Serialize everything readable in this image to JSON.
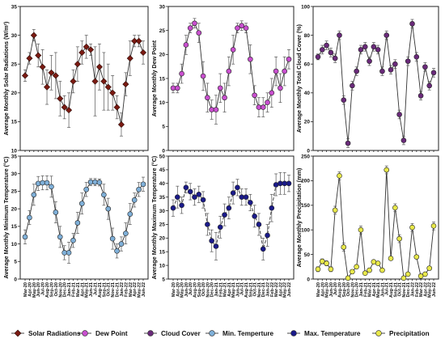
{
  "x_labels": [
    "Mar-20",
    "Apr-20",
    "May-20",
    "Jun-20",
    "Jul-20",
    "Aug-20",
    "Sep-20",
    "Oct-20",
    "Nov-20",
    "Dec-20",
    "Jan-21",
    "Feb-21",
    "Mar-21",
    "Apr-21",
    "May-21",
    "Jun-21",
    "Jul-21",
    "Aug-21",
    "Sep-21",
    "Oct-21",
    "Nov-21",
    "Dec-21",
    "Jan-22",
    "Feb-22",
    "Mar-22",
    "Apr-22",
    "May-22",
    "Jun-22"
  ],
  "legend": [
    {
      "label": "Solar Radiations",
      "color": "#7b1a12",
      "marker": "diamond"
    },
    {
      "label": "Dew Point",
      "color": "#c94fcf",
      "marker": "circle"
    },
    {
      "label": "Cloud Cover",
      "color": "#6a2a7a",
      "marker": "circle"
    },
    {
      "label": "Min. Temperture",
      "color": "#7fb0d9",
      "marker": "circle"
    },
    {
      "label": "Max. Temperature",
      "color": "#1a1a8a",
      "marker": "circle"
    },
    {
      "label": "Precipitation",
      "color": "#e8e84a",
      "marker": "circle"
    }
  ],
  "chart_data": [
    {
      "type": "line",
      "series_name": "Solar Radiations",
      "ylabel": "Average Monthly Solar Radiations (W/m²)",
      "ylim": [
        10,
        35
      ],
      "yticks": [
        10,
        15,
        20,
        25,
        30,
        35
      ],
      "color": "#7b1a12",
      "marker": "diamond",
      "dashed": false,
      "show_xlabels": false,
      "values": [
        23,
        26,
        30,
        26.5,
        24.5,
        21,
        23.5,
        23,
        19,
        17.5,
        17,
        22,
        25,
        27,
        28,
        27.5,
        22,
        24.5,
        22,
        21,
        20,
        17.5,
        14.5,
        21.5,
        26,
        29,
        29,
        27
      ],
      "errors": [
        1,
        1,
        1,
        2,
        3,
        3,
        3,
        4,
        3,
        2,
        3,
        2,
        3,
        2,
        2,
        1,
        6,
        4,
        5,
        4,
        3,
        2,
        2,
        2,
        3,
        1,
        1,
        2
      ]
    },
    {
      "type": "line",
      "series_name": "Dew Point",
      "ylabel": "Average Monthly Dew Point",
      "ylim": [
        0,
        30
      ],
      "yticks": [
        0,
        5,
        10,
        15,
        20,
        25,
        30
      ],
      "color": "#c94fcf",
      "marker": "circle",
      "dashed": false,
      "show_xlabels": false,
      "values": [
        13,
        13,
        16,
        22,
        25.5,
        26.5,
        24.5,
        15.5,
        11,
        8.5,
        8.5,
        13,
        11,
        16.5,
        21,
        25.5,
        26,
        25.5,
        19,
        11.5,
        9,
        9,
        10,
        12,
        16.5,
        13,
        16.5,
        19
      ],
      "errors": [
        1,
        1,
        2,
        2,
        1,
        1,
        2,
        3,
        3,
        2,
        3,
        3,
        3,
        3,
        3,
        1,
        1,
        1,
        3,
        2,
        2,
        2,
        2,
        3,
        3,
        3,
        3,
        2
      ]
    },
    {
      "type": "line",
      "series_name": "Cloud Cover",
      "ylabel": "Average Monthly Total Cloud Cover (%)",
      "ylim": [
        0,
        100
      ],
      "yticks": [
        0,
        20,
        40,
        60,
        80,
        100
      ],
      "color": "#6a2a7a",
      "marker": "circle",
      "dashed": false,
      "show_xlabels": false,
      "values": [
        65,
        70,
        73,
        68,
        64,
        80,
        35,
        5,
        45,
        55,
        70,
        72,
        62,
        72,
        70,
        55,
        80,
        56,
        60,
        25,
        7,
        62,
        88,
        65,
        38,
        58,
        45,
        54
      ],
      "errors": [
        2,
        3,
        3,
        3,
        3,
        3,
        3,
        3,
        3,
        3,
        3,
        3,
        3,
        3,
        3,
        3,
        3,
        3,
        3,
        3,
        3,
        3,
        3,
        3,
        3,
        3,
        3,
        3
      ]
    },
    {
      "type": "line",
      "series_name": "Min. Temperture",
      "ylabel": "Average Monthly Minimum Temperature (°C)",
      "ylim": [
        0,
        35
      ],
      "yticks": [
        0,
        5,
        10,
        15,
        20,
        25,
        30,
        35
      ],
      "color": "#7fb0d9",
      "marker": "circle",
      "dashed": false,
      "show_xlabels": true,
      "values": [
        12,
        17.5,
        24,
        27.2,
        27.4,
        27.4,
        26.3,
        19,
        12,
        7.5,
        7.5,
        11,
        16,
        21.5,
        25.5,
        27.6,
        27.6,
        27.5,
        24,
        20,
        11.5,
        8,
        10,
        13,
        18.5,
        22.5,
        25.5,
        27
      ],
      "errors": [
        2,
        2,
        3,
        2,
        2,
        2,
        3,
        3,
        3,
        2,
        3,
        2,
        3,
        3,
        2,
        1,
        1,
        1,
        3,
        3,
        3,
        2,
        2,
        3,
        3,
        2,
        2,
        2
      ]
    },
    {
      "type": "line",
      "series_name": "Max. Temperature",
      "ylabel": "Average Monthly Maximum Temperature (°C)",
      "ylim": [
        5,
        50
      ],
      "yticks": [
        5,
        10,
        15,
        20,
        25,
        30,
        35,
        40,
        45,
        50
      ],
      "color": "#1a1a8a",
      "marker": "circle",
      "dashed": true,
      "show_xlabels": true,
      "values": [
        31,
        35,
        32,
        38.5,
        37,
        35,
        36,
        34,
        25,
        19,
        17,
        24,
        28.5,
        31,
        36.5,
        38.5,
        35,
        35,
        33,
        28,
        25,
        16,
        21,
        31,
        39.5,
        40,
        40,
        40
      ],
      "errors": [
        3,
        4,
        3,
        2,
        3,
        3,
        3,
        3,
        4,
        4,
        5,
        4,
        4,
        4,
        4,
        3,
        3,
        3,
        3,
        4,
        4,
        4,
        4,
        5,
        4,
        4,
        4,
        3
      ]
    },
    {
      "type": "line",
      "series_name": "Precipitation",
      "ylabel": "Average Monthly Precipitation (mm)",
      "ylim": [
        0,
        250
      ],
      "yticks": [
        0,
        50,
        100,
        150,
        200,
        250
      ],
      "color": "#e8e84a",
      "marker": "circle",
      "dashed": false,
      "show_xlabels": true,
      "values": [
        20,
        36,
        32,
        20,
        140,
        210,
        65,
        2,
        15,
        25,
        100,
        12,
        18,
        35,
        32,
        18,
        222,
        42,
        145,
        82,
        2,
        10,
        105,
        45,
        6,
        10,
        22,
        108
      ],
      "errors": [
        5,
        5,
        5,
        5,
        8,
        8,
        8,
        3,
        3,
        3,
        8,
        3,
        3,
        3,
        3,
        3,
        8,
        3,
        8,
        8,
        3,
        3,
        8,
        3,
        3,
        3,
        3,
        8
      ]
    }
  ]
}
